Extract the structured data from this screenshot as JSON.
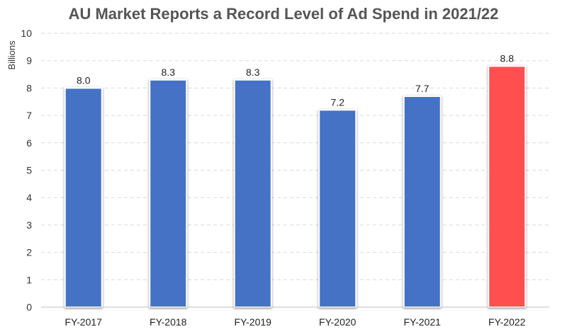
{
  "chart_data": {
    "type": "bar",
    "title": "AU Market Reports a Record Level of Ad Spend in 2021/22",
    "xlabel": "",
    "ylabel": "Billions",
    "categories": [
      "FY-2017",
      "FY-2018",
      "FY-2019",
      "FY-2020",
      "FY-2021",
      "FY-2022"
    ],
    "values": [
      8.0,
      8.3,
      8.3,
      7.2,
      7.7,
      8.8
    ],
    "data_labels": [
      "8.0",
      "8.3",
      "8.3",
      "7.2",
      "7.7",
      "8.8"
    ],
    "ylim": [
      0,
      10
    ],
    "yticks": [
      0,
      1,
      2,
      3,
      4,
      5,
      6,
      7,
      8,
      9,
      10
    ],
    "grid": true,
    "legend": "none",
    "colors": {
      "bar": "#4472C4",
      "highlight_bar": "#FF4F4F",
      "highlight_category": "FY-2022"
    }
  }
}
